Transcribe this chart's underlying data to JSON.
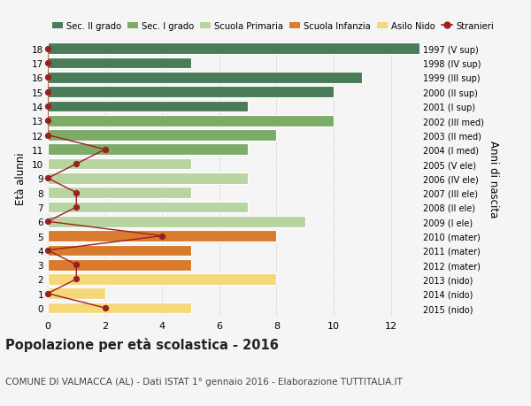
{
  "ages": [
    18,
    17,
    16,
    15,
    14,
    13,
    12,
    11,
    10,
    9,
    8,
    7,
    6,
    5,
    4,
    3,
    2,
    1,
    0
  ],
  "labels_right": [
    "1997 (V sup)",
    "1998 (IV sup)",
    "1999 (III sup)",
    "2000 (II sup)",
    "2001 (I sup)",
    "2002 (III med)",
    "2003 (II med)",
    "2004 (I med)",
    "2005 (V ele)",
    "2006 (IV ele)",
    "2007 (III ele)",
    "2008 (II ele)",
    "2009 (I ele)",
    "2010 (mater)",
    "2011 (mater)",
    "2012 (mater)",
    "2013 (nido)",
    "2014 (nido)",
    "2015 (nido)"
  ],
  "bar_values": [
    13,
    5,
    11,
    10,
    7,
    10,
    8,
    7,
    5,
    7,
    5,
    7,
    9,
    8,
    5,
    5,
    8,
    2,
    5
  ],
  "bar_colors": [
    "#4a7c59",
    "#4a7c59",
    "#4a7c59",
    "#4a7c59",
    "#4a7c59",
    "#7dab68",
    "#7dab68",
    "#7dab68",
    "#b8d4a0",
    "#b8d4a0",
    "#b8d4a0",
    "#b8d4a0",
    "#b8d4a0",
    "#d97b2e",
    "#d97b2e",
    "#d97b2e",
    "#f5d87a",
    "#f5d87a",
    "#f5d87a"
  ],
  "stranieri_values": [
    0,
    0,
    0,
    0,
    0,
    0,
    0,
    2,
    1,
    0,
    1,
    1,
    0,
    4,
    0,
    1,
    1,
    0,
    2
  ],
  "stranieri_color": "#9b2020",
  "legend_items": [
    {
      "label": "Sec. II grado",
      "color": "#4a7c59"
    },
    {
      "label": "Sec. I grado",
      "color": "#7dab68"
    },
    {
      "label": "Scuola Primaria",
      "color": "#b8d4a0"
    },
    {
      "label": "Scuola Infanzia",
      "color": "#d97b2e"
    },
    {
      "label": "Asilo Nido",
      "color": "#f5d87a"
    },
    {
      "label": "Stranieri",
      "color": "#9b2020"
    }
  ],
  "ylabel_left": "Età alunni",
  "ylabel_right": "Anni di nascita",
  "title": "Popolazione per età scolastica - 2016",
  "subtitle": "COMUNE DI VALMACCA (AL) - Dati ISTAT 1° gennaio 2016 - Elaborazione TUTTITALIA.IT",
  "xticks": [
    0,
    2,
    4,
    6,
    8,
    10,
    12
  ],
  "xlim_max": 13,
  "background_color": "#f5f5f5",
  "bar_edgecolor": "#ffffff",
  "grid_color": "#cccccc",
  "bar_height": 0.78
}
